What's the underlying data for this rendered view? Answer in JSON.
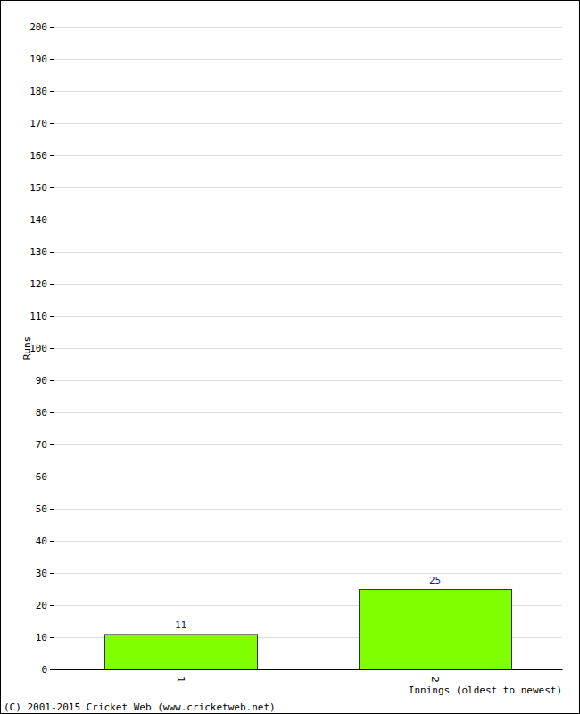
{
  "chart_data": {
    "type": "bar",
    "categories": [
      "1",
      "2"
    ],
    "values": [
      11,
      25
    ],
    "color": "#80ff00",
    "x_label": "Innings (oldest to newest)",
    "y_label": "Runs",
    "annotations": [
      "(C) 2001-2015 Cricket Web (www.cricketweb.net)"
    ],
    "ylim": [
      0,
      200
    ],
    "yticks": [
      0,
      10,
      20,
      30,
      40,
      50,
      60,
      70,
      80,
      90,
      100,
      110,
      120,
      130,
      140,
      150,
      160,
      170,
      180,
      190,
      200
    ],
    "grid": true,
    "data_labels": true
  }
}
